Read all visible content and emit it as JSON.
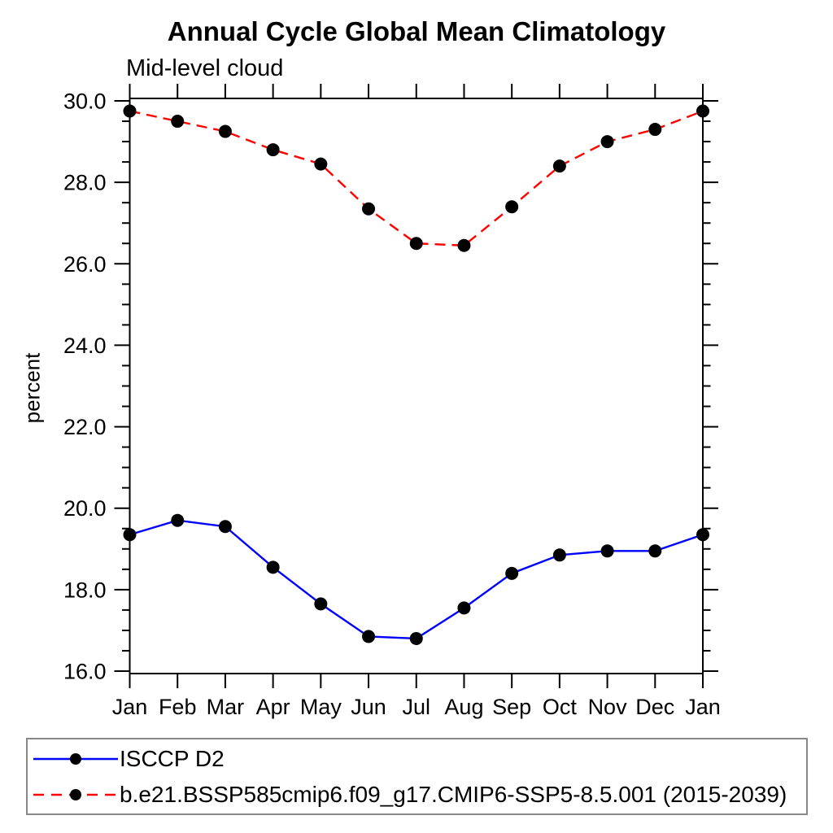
{
  "header": {
    "title": "Annual Cycle Global Mean Climatology",
    "subtitle": "Mid-level cloud"
  },
  "chart_data": {
    "type": "line",
    "title": "Annual Cycle Global Mean Climatology",
    "subtitle": "Mid-level cloud",
    "xlabel": "",
    "ylabel": "percent",
    "categories": [
      "Jan",
      "Feb",
      "Mar",
      "Apr",
      "May",
      "Jun",
      "Jul",
      "Aug",
      "Sep",
      "Oct",
      "Nov",
      "Dec",
      "Jan"
    ],
    "ylim": [
      15.94,
      30.06
    ],
    "yaxis": {
      "first_major_tick": 16.0,
      "last_major_tick": 30.0,
      "major_step": 2.0,
      "minor_step": 0.5,
      "tick_labels": [
        "16.0",
        "18.0",
        "20.0",
        "22.0",
        "24.0",
        "26.0",
        "28.0",
        "30.0"
      ]
    },
    "grid": "off",
    "legend_position": "bottom",
    "marker_color": "#000000",
    "series": [
      {
        "name": "ISCCP D2",
        "color": "#0000ff",
        "line_style": "solid",
        "marker": "filled-circle",
        "values": [
          19.35,
          19.7,
          19.55,
          18.55,
          17.65,
          16.85,
          16.8,
          17.55,
          18.4,
          18.85,
          18.95,
          18.95,
          19.35
        ]
      },
      {
        "name": "b.e21.BSSP585cmip6.f09_g17.CMIP6-SSP5-8.5.001 (2015-2039)",
        "color": "#ff0000",
        "line_style": "dashed",
        "marker": "filled-circle",
        "values": [
          29.75,
          29.5,
          29.25,
          28.8,
          28.45,
          27.35,
          26.5,
          26.45,
          27.4,
          28.4,
          29.0,
          29.3,
          29.75
        ]
      }
    ]
  }
}
